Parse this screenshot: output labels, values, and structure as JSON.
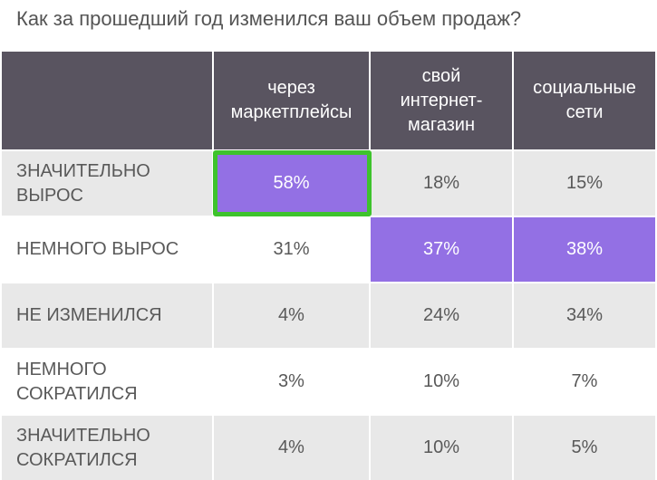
{
  "title": "Как за прошедший год изменился ваш объем продаж?",
  "colors": {
    "header_bg": "#595460",
    "highlight": "#9370e4",
    "selection": "#3ec32c",
    "stripe": "#e8e8e8",
    "text": "#595959"
  },
  "chart_data": {
    "type": "table",
    "title": "Как за прошедший год изменился ваш объем продаж?",
    "columns": [
      "через маркетплейсы",
      "свой интернет-магазин",
      "социальные сети"
    ],
    "column_lines": [
      [
        "через",
        "маркетплейсы"
      ],
      [
        "свой",
        "интернет-",
        "магазин"
      ],
      [
        "социальные",
        "сети"
      ]
    ],
    "rows": [
      {
        "label_lines": [
          "ЗНАЧИТЕЛЬНО",
          "ВЫРОС"
        ],
        "values": [
          "58%",
          "18%",
          "15%"
        ],
        "highlight": [
          true,
          false,
          false
        ]
      },
      {
        "label_lines": [
          "НЕМНОГО ВЫРОС"
        ],
        "values": [
          "31%",
          "37%",
          "38%"
        ],
        "highlight": [
          false,
          true,
          true
        ]
      },
      {
        "label_lines": [
          "НЕ ИЗМЕНИЛСЯ"
        ],
        "values": [
          "4%",
          "24%",
          "34%"
        ],
        "highlight": [
          false,
          false,
          false
        ]
      },
      {
        "label_lines": [
          "НЕМНОГО",
          "СОКРАТИЛСЯ"
        ],
        "values": [
          "3%",
          "10%",
          "7%"
        ],
        "highlight": [
          false,
          false,
          false
        ]
      },
      {
        "label_lines": [
          "ЗНАЧИТЕЛЬНО",
          "СОКРАТИЛСЯ"
        ],
        "values": [
          "4%",
          "10%",
          "5%"
        ],
        "highlight": [
          false,
          false,
          false
        ]
      }
    ],
    "selected_cell": {
      "row": 0,
      "column": 0
    }
  }
}
